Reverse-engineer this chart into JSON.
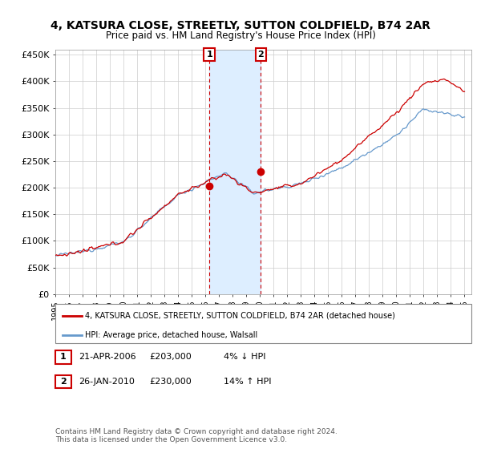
{
  "title": "4, KATSURA CLOSE, STREETLY, SUTTON COLDFIELD, B74 2AR",
  "subtitle": "Price paid vs. HM Land Registry's House Price Index (HPI)",
  "ylabel_ticks": [
    "£0",
    "£50K",
    "£100K",
    "£150K",
    "£200K",
    "£250K",
    "£300K",
    "£350K",
    "£400K",
    "£450K"
  ],
  "ytick_values": [
    0,
    50000,
    100000,
    150000,
    200000,
    250000,
    300000,
    350000,
    400000,
    450000
  ],
  "ylim": [
    0,
    460000
  ],
  "xlim_start": 1995.0,
  "xlim_end": 2025.5,
  "legend_line1": "4, KATSURA CLOSE, STREETLY, SUTTON COLDFIELD, B74 2AR (detached house)",
  "legend_line2": "HPI: Average price, detached house, Walsall",
  "red_color": "#cc0000",
  "blue_color": "#6699cc",
  "shade_color": "#ddeeff",
  "marker1_date": "21-APR-2006",
  "marker1_price": 203000,
  "marker1_label": "4% ↓ HPI",
  "marker2_date": "26-JAN-2010",
  "marker2_price": 230000,
  "marker2_label": "14% ↑ HPI",
  "footer": "Contains HM Land Registry data © Crown copyright and database right 2024.\nThis data is licensed under the Open Government Licence v3.0.",
  "background_color": "#ffffff",
  "grid_color": "#cccccc",
  "t1": 2006.29,
  "t2": 2010.07
}
